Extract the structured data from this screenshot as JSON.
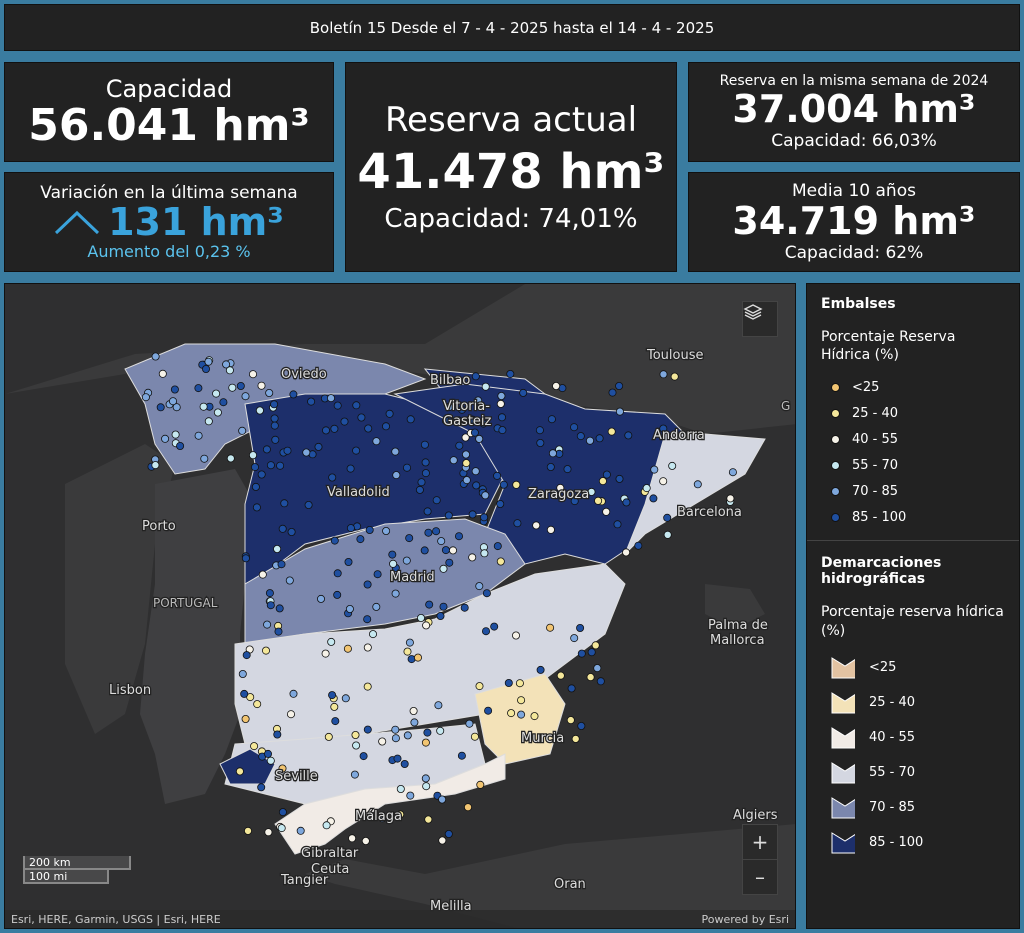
{
  "header": {
    "title": "Boletín 15 Desde el 7 - 4 - 2025 hasta el 14 - 4 - 2025"
  },
  "capacity": {
    "title": "Capacidad",
    "value": "56.041 hm³"
  },
  "variation": {
    "title": "Variación en la última semana",
    "value": "131 hm³",
    "subtitle": "Aumento del 0,23 %",
    "color": "#3aa3dc"
  },
  "reserve": {
    "title": "Reserva actual",
    "value": "41.478 hm³",
    "subtitle": "Capacidad: 74,01%"
  },
  "last_year": {
    "title": "Reserva en la misma semana de 2024",
    "value": "37.004 hm³",
    "subtitle": "Capacidad: 66,03%"
  },
  "average": {
    "title": "Media 10 años",
    "value": "34.719 hm³",
    "subtitle": "Capacidad: 62%"
  },
  "map": {
    "cities": [
      "Toulouse",
      "Oviedo",
      "Bilbao",
      "Vitoria-",
      "Gasteiz",
      "Andorra",
      "Porto",
      "Valladolid",
      "Zaragoza",
      "Barcelona",
      "PORTUGAL",
      "Madrid",
      "Palma de",
      "Mallorca",
      "Lisbon",
      "Murcia",
      "Seville",
      "Algiers",
      "Málaga",
      "Gibraltar",
      "Ceuta",
      "Tangier",
      "Oran",
      "Melilla",
      "G"
    ],
    "scale": {
      "km": "200 km",
      "mi": "100 mi"
    },
    "attribution": "Esri, HERE, Garmin, USGS | Esri, HERE",
    "powered": "Powered by Esri",
    "zoom_in": "+",
    "zoom_out": "–",
    "layers_icon": "layers-icon"
  },
  "legend": {
    "embalses_title": "Embalses",
    "embalses_sub": "Porcentaje Reserva Hídrica (%)",
    "embalses_items": [
      {
        "label": "<25",
        "color": "#f2c572"
      },
      {
        "label": "25 - 40",
        "color": "#f4e79a"
      },
      {
        "label": "40 - 55",
        "color": "#f6f2e8"
      },
      {
        "label": "55 - 70",
        "color": "#c6e8f0"
      },
      {
        "label": "70 - 85",
        "color": "#7ea7dc"
      },
      {
        "label": "85 - 100",
        "color": "#1f4fa0"
      }
    ],
    "dem_title": "Demarcaciones hidrográficas",
    "dem_sub": "Porcentaje reserva hídrica (%)",
    "dem_items": [
      {
        "label": "<25",
        "color": "#e3c3a2"
      },
      {
        "label": "25 - 40",
        "color": "#f3e2b8"
      },
      {
        "label": "40 - 55",
        "color": "#f1ebe6"
      },
      {
        "label": "55 - 70",
        "color": "#d4d7e1"
      },
      {
        "label": "70 - 85",
        "color": "#7b87ad"
      },
      {
        "label": "85 - 100",
        "color": "#1d2f6b"
      }
    ]
  }
}
